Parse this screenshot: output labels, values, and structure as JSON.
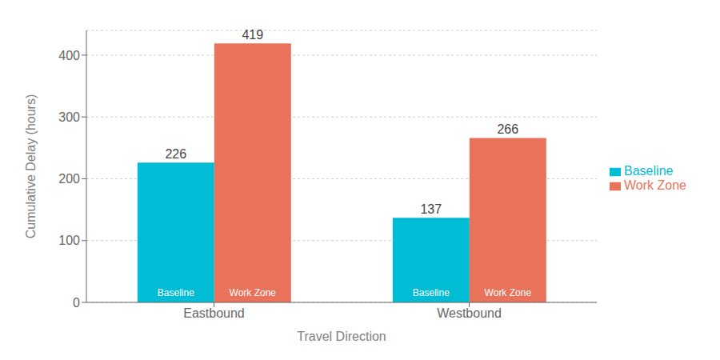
{
  "chart_data": {
    "type": "bar",
    "xlabel": "Travel Direction",
    "ylabel": "Cumulative Delay (hours)",
    "categories": [
      "Eastbound",
      "Westbound"
    ],
    "series": [
      {
        "name": "Baseline",
        "color": "#00BCD4",
        "values": [
          226,
          137
        ]
      },
      {
        "name": "Work Zone",
        "color": "#E8735A",
        "values": [
          419,
          266
        ]
      }
    ],
    "ylim": [
      0,
      440
    ],
    "yticks": [
      0,
      100,
      200,
      300,
      400
    ],
    "grid": true,
    "legend": "right",
    "data_labels": true
  }
}
